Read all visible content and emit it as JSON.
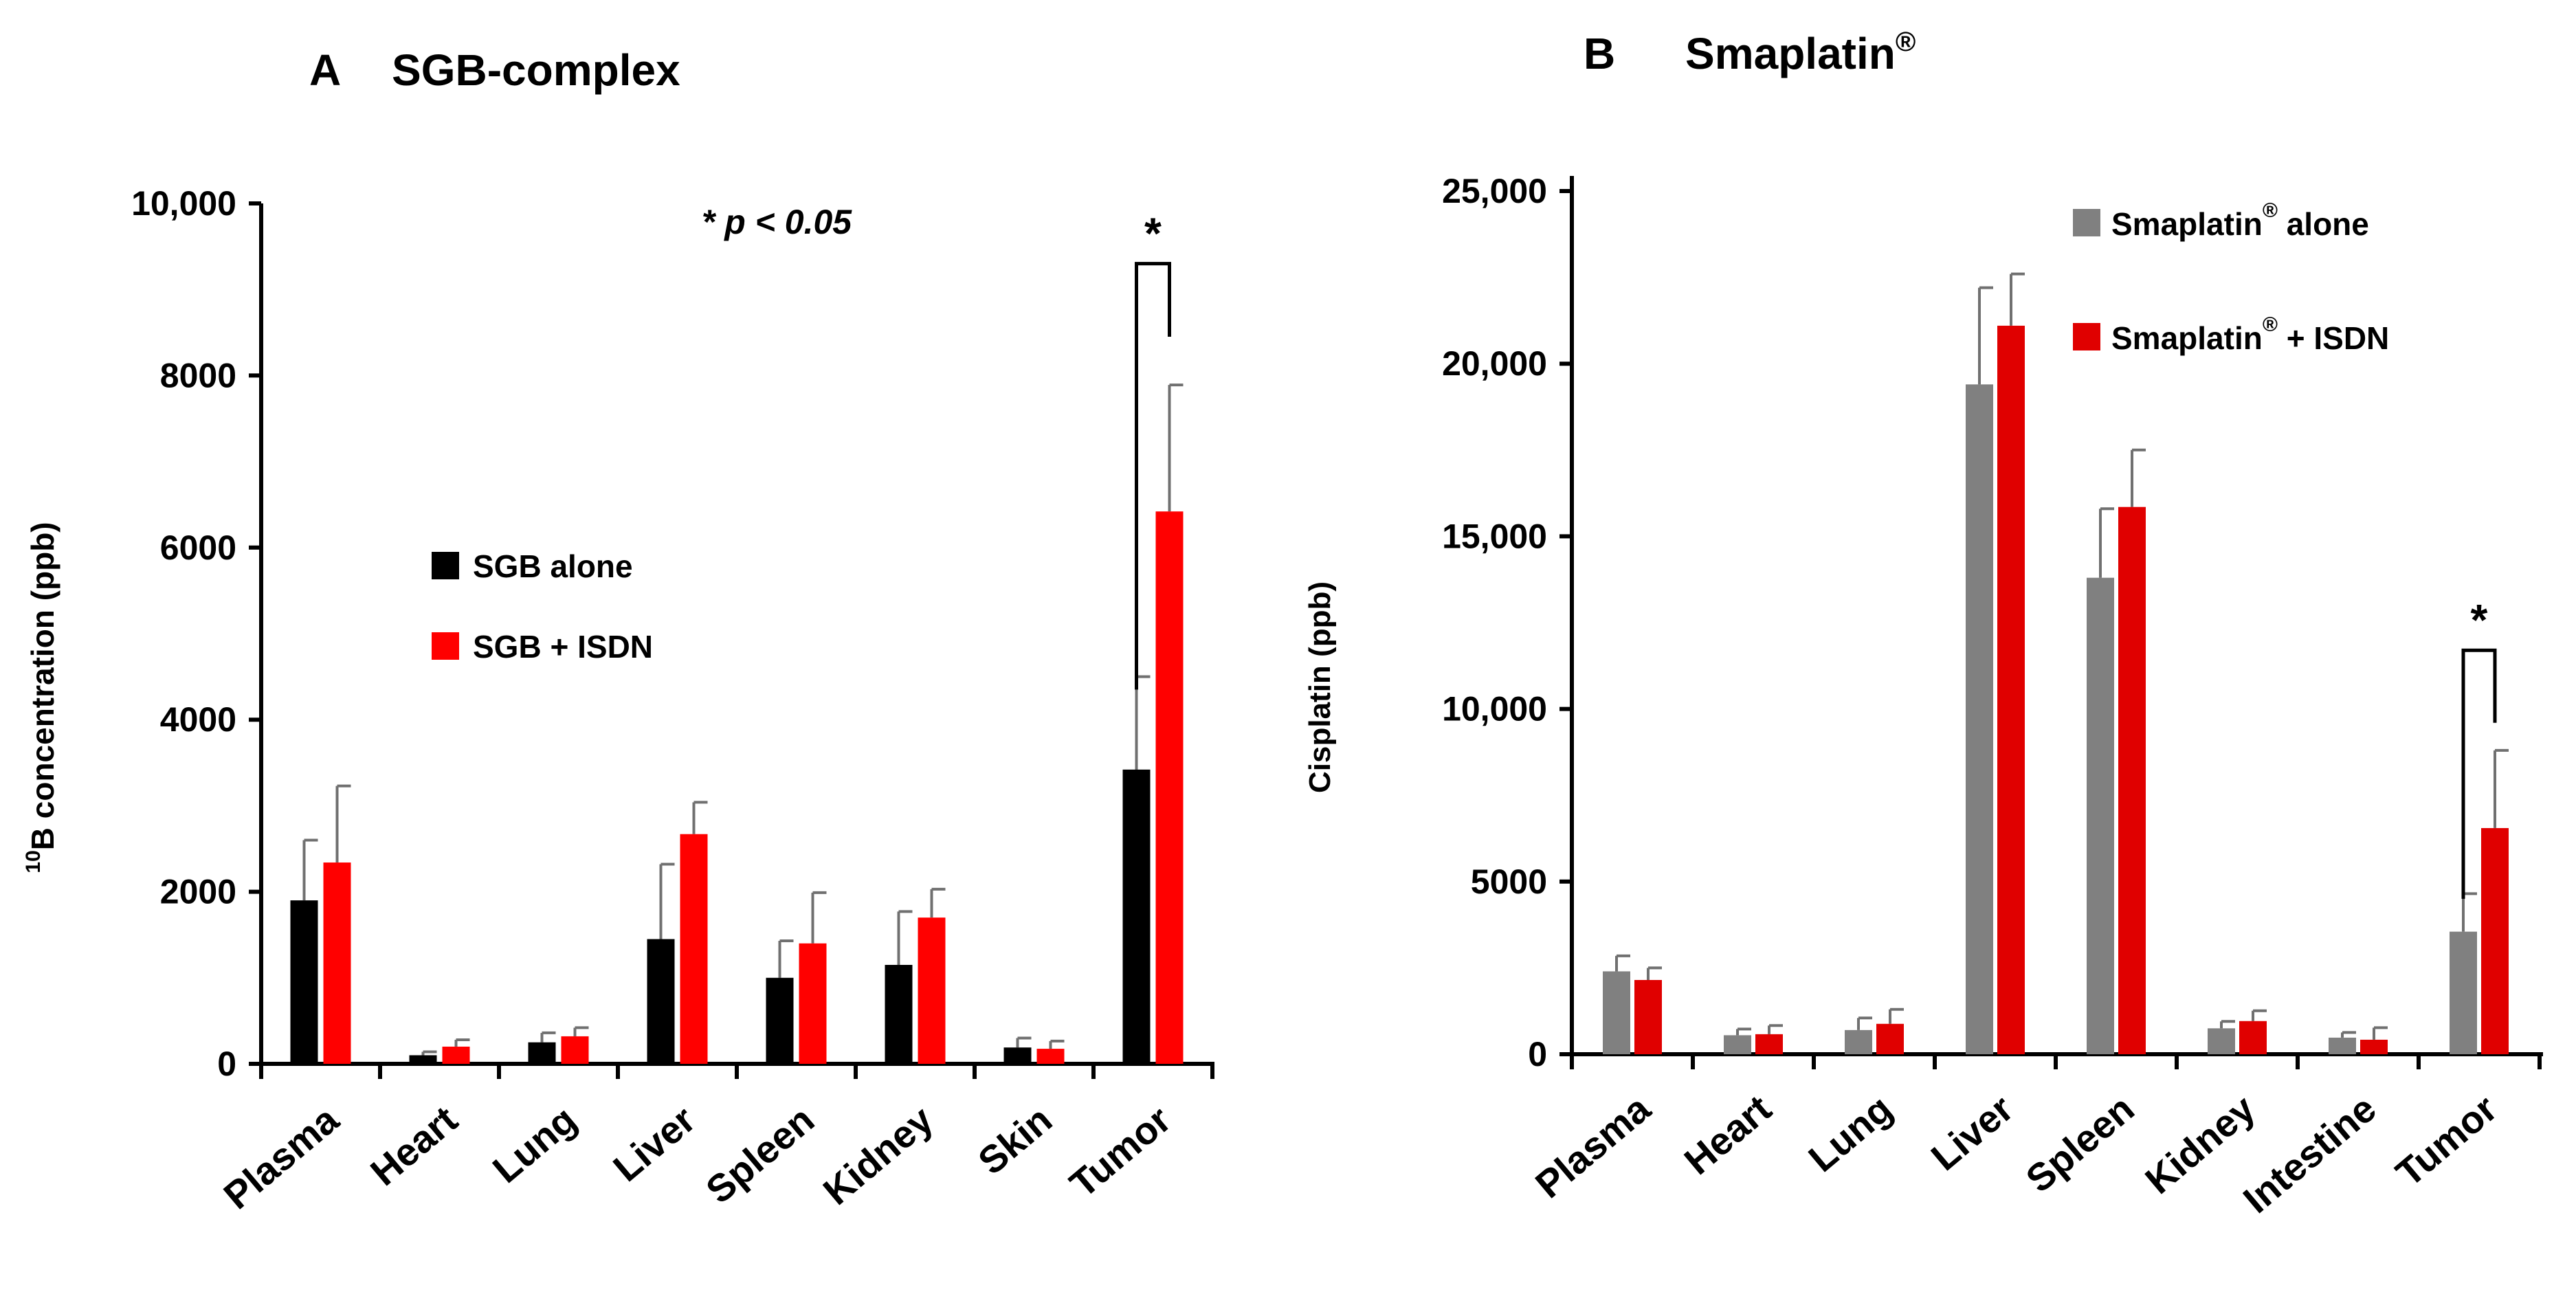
{
  "chart_data": [
    {
      "type": "bar",
      "panel_letter": "A",
      "title": "SGB-complex",
      "ylabel_super": "10",
      "ylabel": "B concentration (ppb)",
      "xlabel": "",
      "ylim": [
        0,
        10000
      ],
      "yticks": [
        0,
        2000,
        4000,
        6000,
        8000,
        10000
      ],
      "ytick_labels": [
        "0",
        "2000",
        "4000",
        "6000",
        "8000",
        "10,000"
      ],
      "categories": [
        "Plasma",
        "Heart",
        "Lung",
        "Liver",
        "Spleen",
        "Kidney",
        "Skin",
        "Tumor"
      ],
      "series": [
        {
          "name": "SGB alone",
          "color": "#000000",
          "values": [
            1900,
            100,
            250,
            1450,
            1000,
            1150,
            190,
            3420
          ],
          "errors": [
            700,
            40,
            110,
            870,
            430,
            620,
            110,
            1080
          ]
        },
        {
          "name": "SGB + ISDN",
          "color": "#ff0000",
          "values": [
            2340,
            200,
            320,
            2670,
            1400,
            1700,
            175,
            6420
          ],
          "errors": [
            890,
            80,
            100,
            370,
            590,
            330,
            90,
            1470
          ]
        }
      ],
      "legend_position": "center",
      "annotation": "* p < 0.05",
      "significance": {
        "category": "Tumor",
        "symbol": "*"
      }
    },
    {
      "type": "bar",
      "panel_letter": "B",
      "title": "Smaplatin",
      "title_super": "®",
      "ylabel": "Cisplatin (ppb)",
      "xlabel": "",
      "ylim": [
        0,
        25000
      ],
      "yticks": [
        0,
        5000,
        10000,
        15000,
        20000,
        25000
      ],
      "ytick_labels": [
        "0",
        "5000",
        "10,000",
        "15,000",
        "20,000",
        "25,000"
      ],
      "categories": [
        "Plasma",
        "Heart",
        "Lung",
        "Liver",
        "Spleen",
        "Kidney",
        "Intestine",
        "Tumor"
      ],
      "series": [
        {
          "name": "Smaplatin",
          "name_super": "®",
          "name_suffix": " alone",
          "color": "#808080",
          "values": [
            2400,
            550,
            700,
            19400,
            13800,
            750,
            480,
            3550
          ],
          "errors": [
            450,
            180,
            350,
            2800,
            2000,
            200,
            150,
            1100
          ]
        },
        {
          "name": "Smaplatin",
          "name_super": "®",
          "name_suffix": " + ISDN",
          "color": "#e00000",
          "values": [
            2150,
            580,
            880,
            21100,
            15850,
            960,
            420,
            6550
          ],
          "errors": [
            350,
            250,
            420,
            1500,
            1650,
            300,
            350,
            2250
          ]
        }
      ],
      "legend_position": "top-right",
      "significance": {
        "category": "Tumor",
        "symbol": "*"
      }
    }
  ]
}
